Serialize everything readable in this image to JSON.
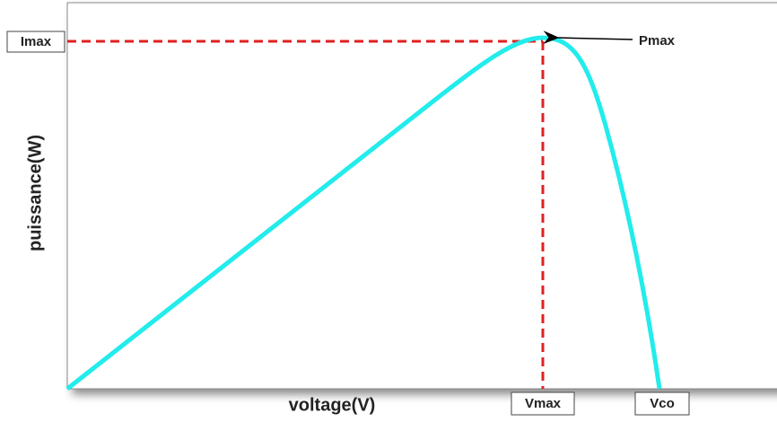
{
  "diagram": {
    "y_axis_label": "puissance(W)",
    "x_axis_label": "voltage(V)",
    "labels": {
      "imax": "Imax",
      "pmax": "Pmax",
      "vmax": "Vmax",
      "vco": "Vco"
    }
  }
}
